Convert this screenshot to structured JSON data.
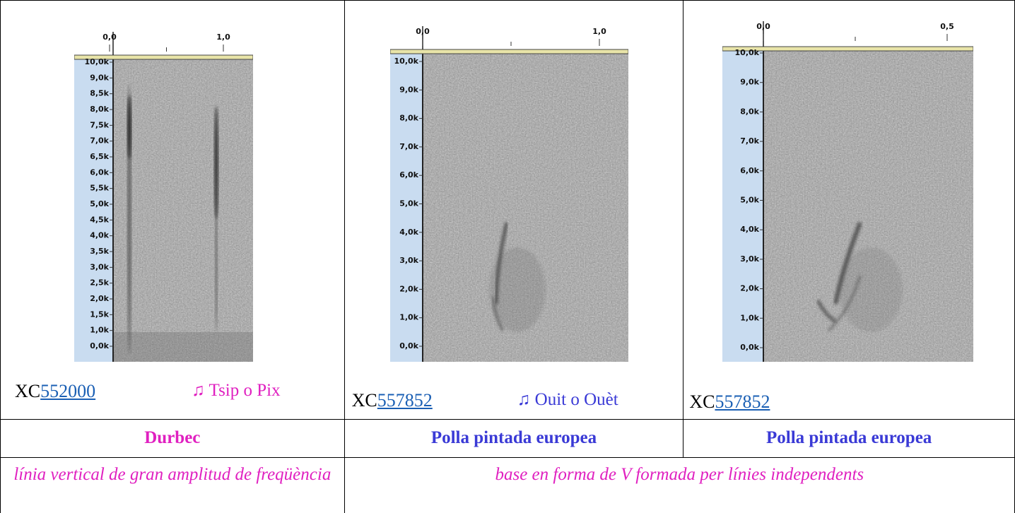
{
  "columns": [
    {
      "spectrogram": {
        "x_labels": [
          "0,0",
          "1,0"
        ],
        "y_labels": [
          "10,0k",
          "9,0k",
          "8,5k",
          "8,0k",
          "7,5k",
          "7,0k",
          "6,5k",
          "6,0k",
          "5,5k",
          "5,0k",
          "4,5k",
          "4,0k",
          "3,5k",
          "3,0k",
          "2,5k",
          "2,0k",
          "1,5k",
          "1,0k",
          "0,0k"
        ]
      },
      "recording": {
        "prefix": "XC",
        "id": "552000"
      },
      "call": "♫ Tsip o Pix",
      "species": "Durbec"
    },
    {
      "spectrogram": {
        "x_labels": [
          "0,0",
          "1,0"
        ],
        "y_labels": [
          "10,0k",
          "9,0k",
          "8,0k",
          "7,0k",
          "6,0k",
          "5,0k",
          "4,0k",
          "3,0k",
          "2,0k",
          "1,0k",
          "0,0k"
        ]
      },
      "recording": {
        "prefix": "XC",
        "id": "557852"
      },
      "call": "♫ Ouit o Ouèt",
      "species": "Polla pintada europea"
    },
    {
      "spectrogram": {
        "x_labels": [
          "0,0",
          "0,5"
        ],
        "y_labels": [
          "10,0k",
          "9,0k",
          "8,0k",
          "7,0k",
          "6,0k",
          "5,0k",
          "4,0k",
          "3,0k",
          "2,0k",
          "1,0k",
          "0,0k"
        ]
      },
      "recording": {
        "prefix": "XC",
        "id": "557852"
      },
      "species": "Polla pintada europea"
    }
  ],
  "descriptions": [
    "línia vertical de gran amplitud de freqüència",
    "base en forma de V formada per línies independents"
  ]
}
